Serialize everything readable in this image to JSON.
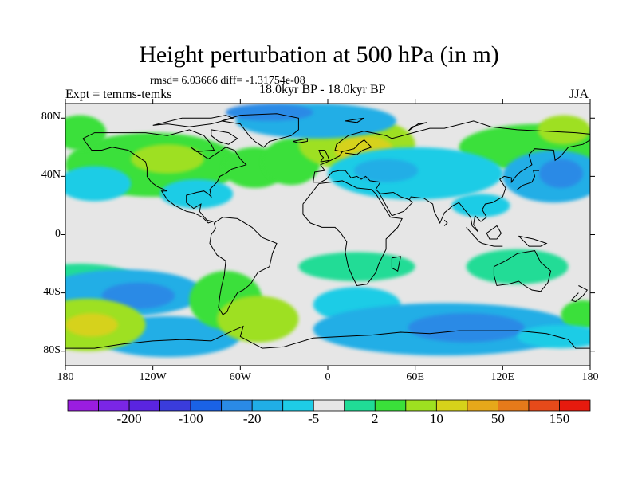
{
  "title": "Height perturbation at 500 hPa (in m)",
  "stats_text": "rmsd= 6.03666 diff= -1.31754e-08",
  "experiment": "Expt = temms-temks",
  "period": "18.0kyr BP - 18.0kyr BP",
  "season": "JJA",
  "map": {
    "projection": "cylindrical equidistant",
    "lon_range": [
      -180,
      180
    ],
    "lat_range": [
      -90,
      90
    ],
    "x_ticks": [
      {
        "lon": -180,
        "label": "180"
      },
      {
        "lon": -120,
        "label": "120W"
      },
      {
        "lon": -60,
        "label": "60W"
      },
      {
        "lon": 0,
        "label": "0"
      },
      {
        "lon": 60,
        "label": "60E"
      },
      {
        "lon": 120,
        "label": "120E"
      },
      {
        "lon": 180,
        "label": "180"
      }
    ],
    "y_ticks": [
      {
        "lat": 80,
        "label": "80N"
      },
      {
        "lat": 40,
        "label": "40N"
      },
      {
        "lat": 0,
        "label": "0"
      },
      {
        "lat": -40,
        "label": "40S"
      },
      {
        "lat": -80,
        "label": "80S"
      }
    ],
    "background_color": "#e6e6e6",
    "coast_color": "#000000"
  },
  "colorbar": {
    "colors": [
      "#9a1de0",
      "#7a26e6",
      "#5a24e0",
      "#3a3cdc",
      "#1a62e6",
      "#2a8ae6",
      "#20aee6",
      "#1ecce6",
      "#e6e6e6",
      "#20dc96",
      "#3ae03a",
      "#9ee020",
      "#d6d21a",
      "#e6a81a",
      "#e67a1a",
      "#e64a1a",
      "#e61a0e"
    ],
    "labels": [
      {
        "after_index": 1,
        "text": "-200"
      },
      {
        "after_index": 3,
        "text": "-100"
      },
      {
        "after_index": 5,
        "text": "-20"
      },
      {
        "after_index": 7,
        "text": "-5"
      },
      {
        "after_index": 9,
        "text": "2"
      },
      {
        "after_index": 11,
        "text": "10"
      },
      {
        "after_index": 13,
        "text": "50"
      },
      {
        "after_index": 15,
        "text": "150"
      }
    ]
  },
  "anomalies": [
    {
      "lon": -120,
      "lat": 48,
      "rx": 60,
      "ry": 22,
      "level": 10
    },
    {
      "lon": -110,
      "lat": 52,
      "rx": 25,
      "ry": 10,
      "level": 11
    },
    {
      "lon": -50,
      "lat": 46,
      "rx": 22,
      "ry": 14,
      "level": 10
    },
    {
      "lon": -25,
      "lat": 50,
      "rx": 20,
      "ry": 16,
      "level": 10
    },
    {
      "lon": 20,
      "lat": 62,
      "rx": 40,
      "ry": 18,
      "level": 11
    },
    {
      "lon": 25,
      "lat": 58,
      "rx": 20,
      "ry": 10,
      "level": 12
    },
    {
      "lon": 145,
      "lat": 60,
      "rx": 55,
      "ry": 16,
      "level": 10
    },
    {
      "lon": 162,
      "lat": 72,
      "rx": 18,
      "ry": 10,
      "level": 11
    },
    {
      "lon": -170,
      "lat": 70,
      "rx": 18,
      "ry": 12,
      "level": 10
    },
    {
      "lon": -8,
      "lat": 78,
      "rx": 55,
      "ry": 12,
      "level": 6
    },
    {
      "lon": -40,
      "lat": 84,
      "rx": 30,
      "ry": 6,
      "level": 5
    },
    {
      "lon": 60,
      "lat": 42,
      "rx": 60,
      "ry": 18,
      "level": 7
    },
    {
      "lon": 40,
      "lat": 44,
      "rx": 22,
      "ry": 8,
      "level": 6
    },
    {
      "lon": 155,
      "lat": 40,
      "rx": 35,
      "ry": 18,
      "level": 6
    },
    {
      "lon": 160,
      "lat": 42,
      "rx": 15,
      "ry": 10,
      "level": 5
    },
    {
      "lon": -160,
      "lat": 35,
      "rx": 25,
      "ry": 12,
      "level": 7
    },
    {
      "lon": -90,
      "lat": 28,
      "rx": 25,
      "ry": 10,
      "level": 7
    },
    {
      "lon": 105,
      "lat": 20,
      "rx": 20,
      "ry": 8,
      "level": 7
    },
    {
      "lon": -170,
      "lat": -32,
      "rx": 40,
      "ry": 12,
      "level": 9
    },
    {
      "lon": 20,
      "lat": -22,
      "rx": 40,
      "ry": 10,
      "level": 9
    },
    {
      "lon": 130,
      "lat": -22,
      "rx": 35,
      "ry": 12,
      "level": 9
    },
    {
      "lon": -140,
      "lat": -40,
      "rx": 55,
      "ry": 16,
      "level": 6
    },
    {
      "lon": -130,
      "lat": -42,
      "rx": 25,
      "ry": 9,
      "level": 5
    },
    {
      "lon": 20,
      "lat": -48,
      "rx": 30,
      "ry": 12,
      "level": 7
    },
    {
      "lon": 80,
      "lat": -65,
      "rx": 90,
      "ry": 18,
      "level": 6
    },
    {
      "lon": 95,
      "lat": -64,
      "rx": 40,
      "ry": 10,
      "level": 5
    },
    {
      "lon": -110,
      "lat": -70,
      "rx": 50,
      "ry": 14,
      "level": 6
    },
    {
      "lon": -165,
      "lat": -62,
      "rx": 40,
      "ry": 18,
      "level": 11
    },
    {
      "lon": -162,
      "lat": -62,
      "rx": 18,
      "ry": 8,
      "level": 12
    },
    {
      "lon": -70,
      "lat": -45,
      "rx": 25,
      "ry": 20,
      "level": 10
    },
    {
      "lon": -48,
      "lat": -58,
      "rx": 28,
      "ry": 16,
      "level": 11
    },
    {
      "lon": 175,
      "lat": -55,
      "rx": 15,
      "ry": 10,
      "level": 10
    },
    {
      "lon": 160,
      "lat": -70,
      "rx": 30,
      "ry": 8,
      "level": 7
    }
  ]
}
